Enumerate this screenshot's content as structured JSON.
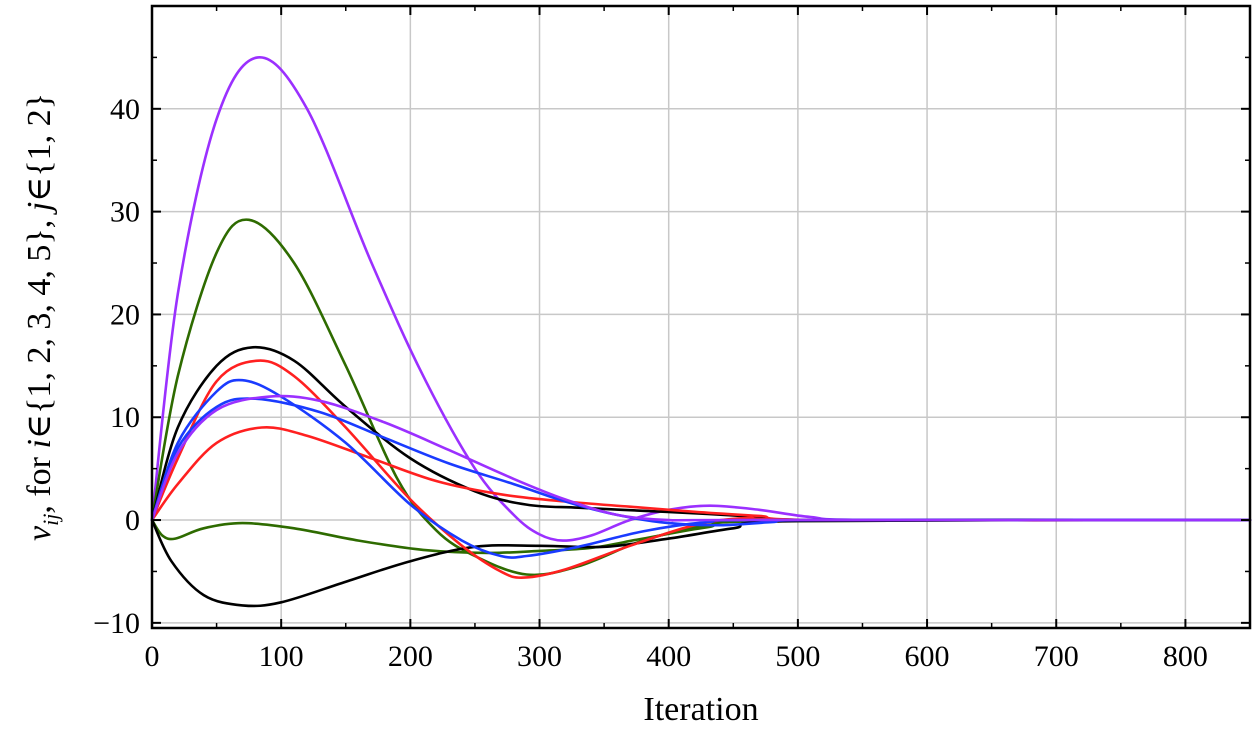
{
  "chart_data": {
    "type": "line",
    "xlabel": "Iteration",
    "ylabel_parts": [
      "v",
      "ij",
      ", for ",
      "i",
      "∈{1, 2, 3, 4, 5}, ",
      "j",
      "∈{1, 2}"
    ],
    "xlim": [
      0,
      850
    ],
    "ylim": [
      -10.5,
      50
    ],
    "xticks": [
      0,
      100,
      200,
      300,
      400,
      500,
      600,
      700,
      800
    ],
    "yticks": [
      -10,
      0,
      10,
      20,
      30,
      40
    ],
    "ytick_labels": [
      "−10",
      "0",
      "10",
      "20",
      "30",
      "40"
    ],
    "grid": true,
    "legend": "none",
    "series": [
      {
        "color": "#9b30ff",
        "points": [
          [
            0,
            0
          ],
          [
            20,
            22
          ],
          [
            50,
            39
          ],
          [
            82,
            45
          ],
          [
            120,
            40
          ],
          [
            170,
            25
          ],
          [
            210,
            14
          ],
          [
            250,
            5
          ],
          [
            280,
            0.5
          ],
          [
            300,
            -1.4
          ],
          [
            318,
            -2
          ],
          [
            340,
            -1.5
          ],
          [
            370,
            0
          ],
          [
            400,
            1
          ],
          [
            432,
            1.4
          ],
          [
            470,
            1
          ],
          [
            510,
            0.3
          ],
          [
            560,
            0
          ],
          [
            850,
            0
          ]
        ]
      },
      {
        "color": "#2e6b00",
        "points": [
          [
            0,
            0
          ],
          [
            20,
            14
          ],
          [
            50,
            26
          ],
          [
            75,
            29.2
          ],
          [
            110,
            25
          ],
          [
            150,
            15
          ],
          [
            190,
            4
          ],
          [
            220,
            -1
          ],
          [
            250,
            -3.5
          ],
          [
            290,
            -5.3
          ],
          [
            330,
            -4.5
          ],
          [
            380,
            -2
          ],
          [
            430,
            -0.5
          ],
          [
            480,
            0
          ],
          [
            850,
            0
          ]
        ]
      },
      {
        "color": "#2e6b00",
        "points": [
          [
            0,
            0
          ],
          [
            8,
            -1.5
          ],
          [
            18,
            -1.8
          ],
          [
            40,
            -0.8
          ],
          [
            70,
            -0.3
          ],
          [
            110,
            -0.8
          ],
          [
            160,
            -2
          ],
          [
            210,
            -2.9
          ],
          [
            260,
            -3.2
          ],
          [
            300,
            -3
          ],
          [
            340,
            -2.7
          ],
          [
            380,
            -1.8
          ],
          [
            430,
            -0.7
          ],
          [
            480,
            -0.1
          ],
          [
            850,
            0
          ]
        ]
      },
      {
        "color": "#000000",
        "points": [
          [
            0,
            0
          ],
          [
            20,
            9
          ],
          [
            50,
            15
          ],
          [
            78,
            16.8
          ],
          [
            110,
            15.5
          ],
          [
            150,
            11
          ],
          [
            200,
            6
          ],
          [
            250,
            2.8
          ],
          [
            290,
            1.5
          ],
          [
            330,
            1.2
          ],
          [
            380,
            0.9
          ],
          [
            430,
            0.6
          ],
          [
            470,
            0.3
          ],
          [
            520,
            0
          ],
          [
            850,
            0
          ]
        ]
      },
      {
        "color": "#000000",
        "points": [
          [
            0,
            0
          ],
          [
            15,
            -4
          ],
          [
            40,
            -7.3
          ],
          [
            70,
            -8.3
          ],
          [
            100,
            -8
          ],
          [
            150,
            -6
          ],
          [
            200,
            -4
          ],
          [
            250,
            -2.6
          ],
          [
            300,
            -2.5
          ],
          [
            350,
            -2.6
          ],
          [
            400,
            -1.8
          ],
          [
            450,
            -0.8
          ],
          [
            500,
            -0.1
          ],
          [
            850,
            0
          ]
        ]
      },
      {
        "color": "#ff2020",
        "points": [
          [
            0,
            0
          ],
          [
            20,
            6
          ],
          [
            50,
            13.5
          ],
          [
            82,
            15.5
          ],
          [
            110,
            14
          ],
          [
            150,
            9
          ],
          [
            200,
            2
          ],
          [
            240,
            -2.5
          ],
          [
            270,
            -5
          ],
          [
            288,
            -5.6
          ],
          [
            320,
            -4.8
          ],
          [
            370,
            -2.5
          ],
          [
            420,
            -0.5
          ],
          [
            460,
            0.2
          ],
          [
            510,
            0
          ],
          [
            850,
            0
          ]
        ]
      },
      {
        "color": "#ff2020",
        "points": [
          [
            0,
            0
          ],
          [
            20,
            3.5
          ],
          [
            50,
            7.5
          ],
          [
            85,
            9
          ],
          [
            120,
            8.2
          ],
          [
            170,
            6
          ],
          [
            220,
            3.8
          ],
          [
            270,
            2.5
          ],
          [
            320,
            1.8
          ],
          [
            370,
            1.3
          ],
          [
            420,
            0.8
          ],
          [
            470,
            0.4
          ],
          [
            520,
            0
          ],
          [
            850,
            0
          ]
        ]
      },
      {
        "color": "#1a3bff",
        "points": [
          [
            0,
            0
          ],
          [
            20,
            7.5
          ],
          [
            50,
            12.5
          ],
          [
            70,
            13.6
          ],
          [
            100,
            12
          ],
          [
            150,
            7.5
          ],
          [
            200,
            1.5
          ],
          [
            240,
            -2
          ],
          [
            270,
            -3.5
          ],
          [
            290,
            -3.5
          ],
          [
            330,
            -2.6
          ],
          [
            380,
            -1.1
          ],
          [
            430,
            -0.2
          ],
          [
            480,
            0
          ],
          [
            850,
            0
          ]
        ]
      },
      {
        "color": "#1a3bff",
        "points": [
          [
            0,
            0
          ],
          [
            20,
            7
          ],
          [
            50,
            11
          ],
          [
            80,
            11.8
          ],
          [
            130,
            10.5
          ],
          [
            180,
            8
          ],
          [
            230,
            5.5
          ],
          [
            280,
            3.5
          ],
          [
            320,
            1.8
          ],
          [
            360,
            0.5
          ],
          [
            400,
            -0.3
          ],
          [
            440,
            -0.5
          ],
          [
            480,
            -0.2
          ],
          [
            520,
            0
          ],
          [
            850,
            0
          ]
        ]
      },
      {
        "color": "#9b30ff",
        "points": [
          [
            0,
            0
          ],
          [
            20,
            6.5
          ],
          [
            50,
            10.7
          ],
          [
            90,
            12
          ],
          [
            130,
            11.6
          ],
          [
            180,
            9.5
          ],
          [
            230,
            6.8
          ],
          [
            280,
            4
          ],
          [
            320,
            2
          ],
          [
            360,
            0.5
          ],
          [
            400,
            0
          ],
          [
            450,
            0
          ],
          [
            850,
            0
          ]
        ]
      }
    ]
  }
}
